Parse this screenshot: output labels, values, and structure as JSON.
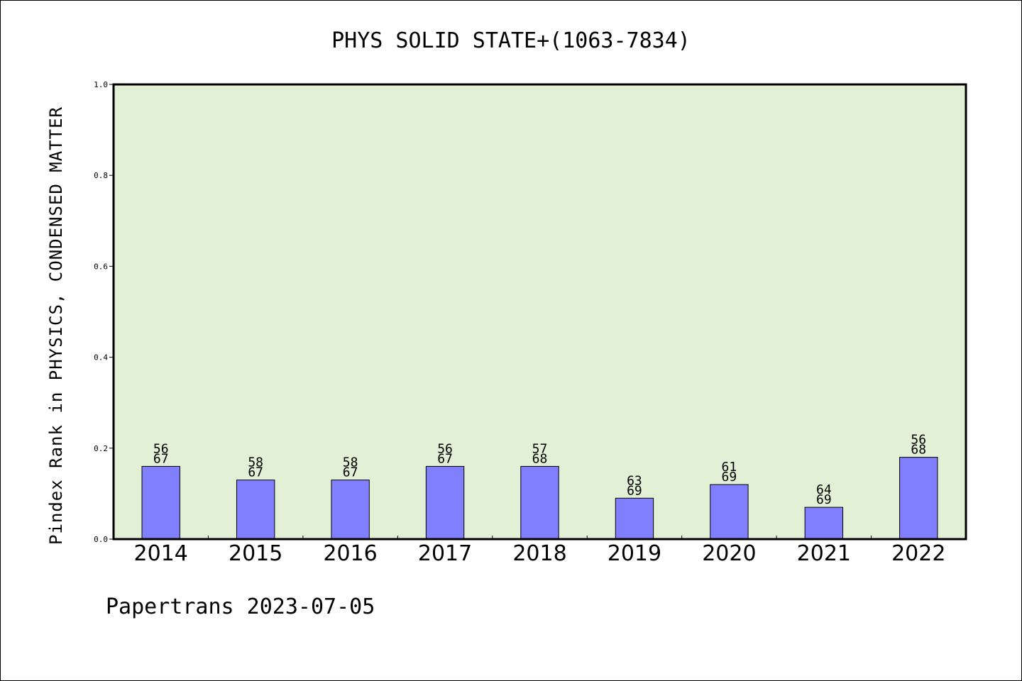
{
  "chart_data": {
    "type": "bar",
    "title": "PHYS SOLID STATE+(1063-7834)",
    "ylabel": "Pindex Rank in PHYSICS, CONDENSED MATTER",
    "xlabel": "",
    "ylim": [
      0,
      1.0
    ],
    "yticks": [
      "0.0",
      "0.2",
      "0.4",
      "0.6",
      "0.8",
      "1.0"
    ],
    "grid": false,
    "categories": [
      "2014",
      "2015",
      "2016",
      "2017",
      "2018",
      "2019",
      "2020",
      "2021",
      "2022"
    ],
    "values": [
      0.16,
      0.13,
      0.13,
      0.16,
      0.16,
      0.09,
      0.12,
      0.07,
      0.18
    ],
    "bar_labels_top": [
      "56",
      "58",
      "58",
      "56",
      "57",
      "63",
      "61",
      "64",
      "56"
    ],
    "bar_labels_bottom": [
      "67",
      "67",
      "67",
      "67",
      "68",
      "69",
      "69",
      "69",
      "68"
    ],
    "colors": {
      "plot_background": "#e2f0d6",
      "bar_fill": "#8080ff",
      "bar_stroke": "#000000"
    }
  },
  "footer": "Papertrans 2023-07-05"
}
